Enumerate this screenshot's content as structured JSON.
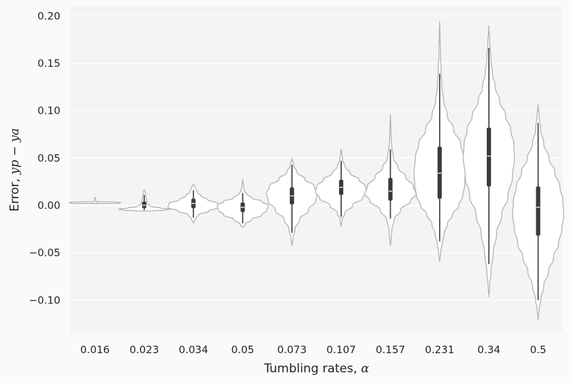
{
  "chart_data": {
    "type": "violin",
    "xlabel_text": "Tumbling rates, ",
    "xlabel_math": "α",
    "ylabel_text": "Error, ",
    "ylabel_math": "yp − ya",
    "categories": [
      "0.016",
      "0.023",
      "0.034",
      "0.05",
      "0.073",
      "0.107",
      "0.157",
      "0.231",
      "0.34",
      "0.5"
    ],
    "yticks": [
      -0.1,
      -0.05,
      0.0,
      0.05,
      0.1,
      0.15,
      0.2
    ],
    "ytick_labels": [
      "−0.10",
      "−0.05",
      "0.00",
      "0.05",
      "0.10",
      "0.15",
      "0.20"
    ],
    "ylim": [
      -0.135,
      0.21
    ],
    "grid": true,
    "colors": {
      "background": "#f4f4f4",
      "grid": "#ffffff",
      "violin_edge": "#b4b4b4",
      "violin_fill": "#ffffff",
      "box": "#3a3a3a",
      "median": "#ffffff"
    },
    "violins": [
      {
        "min": 0.002,
        "max": 0.009,
        "q1": 0.003,
        "median": 0.003,
        "q3": 0.0035,
        "wlo": 0.003,
        "whi": 0.003,
        "density": [
          [
            0.002,
            0.9
          ],
          [
            0.0025,
            1.0
          ],
          [
            0.003,
            1.0
          ],
          [
            0.0035,
            0.9
          ],
          [
            0.004,
            0.03
          ],
          [
            0.006,
            0.03
          ],
          [
            0.009,
            0.0
          ]
        ]
      },
      {
        "min": -0.006,
        "max": 0.017,
        "q1": -0.003,
        "median": 0.0,
        "q3": 0.004,
        "wlo": -0.005,
        "whi": 0.011,
        "density": [
          [
            -0.006,
            0.2
          ],
          [
            -0.005,
            0.85
          ],
          [
            -0.004,
            1.0
          ],
          [
            -0.003,
            0.65
          ],
          [
            -0.001,
            0.25
          ],
          [
            0.002,
            0.12
          ],
          [
            0.006,
            0.08
          ],
          [
            0.01,
            0.06
          ],
          [
            0.014,
            0.04
          ],
          [
            0.017,
            0.0
          ]
        ]
      },
      {
        "min": -0.019,
        "max": 0.023,
        "q1": -0.003,
        "median": 0.002,
        "q3": 0.007,
        "wlo": -0.013,
        "whi": 0.016,
        "density": [
          [
            -0.019,
            0.0
          ],
          [
            -0.014,
            0.08
          ],
          [
            -0.01,
            0.2
          ],
          [
            -0.006,
            0.6
          ],
          [
            -0.002,
            1.0
          ],
          [
            0.002,
            0.95
          ],
          [
            0.006,
            0.55
          ],
          [
            0.01,
            0.3
          ],
          [
            0.014,
            0.15
          ],
          [
            0.018,
            0.08
          ],
          [
            0.023,
            0.0
          ]
        ]
      },
      {
        "min": -0.024,
        "max": 0.028,
        "q1": -0.007,
        "median": -0.002,
        "q3": 0.003,
        "wlo": -0.019,
        "whi": 0.013,
        "density": [
          [
            -0.024,
            0.0
          ],
          [
            -0.02,
            0.1
          ],
          [
            -0.015,
            0.35
          ],
          [
            -0.01,
            0.75
          ],
          [
            -0.005,
            0.95
          ],
          [
            0.0,
            1.0
          ],
          [
            0.004,
            0.75
          ],
          [
            0.008,
            0.35
          ],
          [
            0.012,
            0.15
          ],
          [
            0.016,
            0.06
          ],
          [
            0.021,
            0.03
          ],
          [
            0.028,
            0.0
          ]
        ]
      },
      {
        "min": -0.043,
        "max": 0.05,
        "q1": 0.001,
        "median": 0.01,
        "q3": 0.019,
        "wlo": -0.029,
        "whi": 0.043,
        "density": [
          [
            -0.043,
            0.0
          ],
          [
            -0.035,
            0.04
          ],
          [
            -0.025,
            0.12
          ],
          [
            -0.015,
            0.3
          ],
          [
            -0.005,
            0.65
          ],
          [
            0.005,
            0.93
          ],
          [
            0.012,
            1.0
          ],
          [
            0.02,
            0.88
          ],
          [
            0.028,
            0.5
          ],
          [
            0.035,
            0.2
          ],
          [
            0.042,
            0.07
          ],
          [
            0.05,
            0.0
          ]
        ]
      },
      {
        "min": -0.023,
        "max": 0.06,
        "q1": 0.011,
        "median": 0.019,
        "q3": 0.027,
        "wlo": -0.012,
        "whi": 0.047,
        "density": [
          [
            -0.023,
            0.0
          ],
          [
            -0.015,
            0.04
          ],
          [
            -0.008,
            0.15
          ],
          [
            0.0,
            0.45
          ],
          [
            0.008,
            0.85
          ],
          [
            0.014,
            1.0
          ],
          [
            0.02,
            0.95
          ],
          [
            0.027,
            0.7
          ],
          [
            0.034,
            0.35
          ],
          [
            0.041,
            0.15
          ],
          [
            0.048,
            0.06
          ],
          [
            0.055,
            0.02
          ],
          [
            0.06,
            0.0
          ]
        ]
      },
      {
        "min": -0.043,
        "max": 0.096,
        "q1": 0.005,
        "median": 0.015,
        "q3": 0.029,
        "wlo": -0.014,
        "whi": 0.059,
        "density": [
          [
            -0.043,
            0.0
          ],
          [
            -0.035,
            0.03
          ],
          [
            -0.025,
            0.06
          ],
          [
            -0.015,
            0.15
          ],
          [
            -0.005,
            0.4
          ],
          [
            0.005,
            0.8
          ],
          [
            0.012,
            1.0
          ],
          [
            0.02,
            0.9
          ],
          [
            0.03,
            0.6
          ],
          [
            0.04,
            0.3
          ],
          [
            0.05,
            0.12
          ],
          [
            0.06,
            0.06
          ],
          [
            0.07,
            0.03
          ],
          [
            0.085,
            0.015
          ],
          [
            0.096,
            0.0
          ]
        ]
      },
      {
        "min": -0.06,
        "max": 0.194,
        "q1": 0.007,
        "median": 0.034,
        "q3": 0.062,
        "wlo": -0.038,
        "whi": 0.139,
        "density": [
          [
            -0.06,
            0.0
          ],
          [
            -0.05,
            0.04
          ],
          [
            -0.04,
            0.1
          ],
          [
            -0.03,
            0.18
          ],
          [
            -0.02,
            0.3
          ],
          [
            -0.01,
            0.5
          ],
          [
            0.0,
            0.75
          ],
          [
            0.01,
            0.9
          ],
          [
            0.02,
            0.97
          ],
          [
            0.035,
            1.0
          ],
          [
            0.05,
            0.95
          ],
          [
            0.065,
            0.82
          ],
          [
            0.08,
            0.55
          ],
          [
            0.095,
            0.3
          ],
          [
            0.11,
            0.16
          ],
          [
            0.125,
            0.09
          ],
          [
            0.14,
            0.06
          ],
          [
            0.16,
            0.03
          ],
          [
            0.18,
            0.015
          ],
          [
            0.194,
            0.0
          ]
        ]
      },
      {
        "min": -0.097,
        "max": 0.19,
        "q1": 0.02,
        "median": 0.052,
        "q3": 0.082,
        "wlo": -0.062,
        "whi": 0.166,
        "density": [
          [
            -0.097,
            0.0
          ],
          [
            -0.085,
            0.03
          ],
          [
            -0.07,
            0.08
          ],
          [
            -0.05,
            0.17
          ],
          [
            -0.03,
            0.3
          ],
          [
            -0.01,
            0.5
          ],
          [
            0.01,
            0.75
          ],
          [
            0.03,
            0.92
          ],
          [
            0.05,
            1.0
          ],
          [
            0.065,
            0.97
          ],
          [
            0.08,
            0.85
          ],
          [
            0.095,
            0.65
          ],
          [
            0.11,
            0.42
          ],
          [
            0.125,
            0.25
          ],
          [
            0.14,
            0.14
          ],
          [
            0.155,
            0.08
          ],
          [
            0.17,
            0.04
          ],
          [
            0.19,
            0.0
          ]
        ]
      },
      {
        "min": -0.121,
        "max": 0.107,
        "q1": -0.032,
        "median": -0.002,
        "q3": 0.02,
        "wlo": -0.1,
        "whi": 0.087,
        "density": [
          [
            -0.121,
            0.0
          ],
          [
            -0.11,
            0.04
          ],
          [
            -0.1,
            0.1
          ],
          [
            -0.085,
            0.22
          ],
          [
            -0.07,
            0.4
          ],
          [
            -0.055,
            0.6
          ],
          [
            -0.04,
            0.8
          ],
          [
            -0.025,
            0.93
          ],
          [
            -0.01,
            1.0
          ],
          [
            0.005,
            0.97
          ],
          [
            0.02,
            0.85
          ],
          [
            0.035,
            0.65
          ],
          [
            0.05,
            0.42
          ],
          [
            0.065,
            0.22
          ],
          [
            0.08,
            0.1
          ],
          [
            0.095,
            0.04
          ],
          [
            0.107,
            0.0
          ]
        ]
      }
    ]
  }
}
